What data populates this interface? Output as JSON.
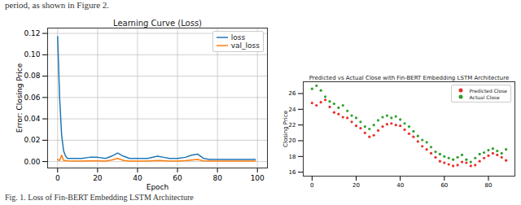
{
  "page_text": "period, as shown in Figure 2.",
  "caption": "Fig. 1. Loss of Fin-BERT Embedding LSTM Architecture",
  "chart_data": [
    {
      "type": "line",
      "title": "Learning Curve (Loss)",
      "x_label": "Epoch",
      "y_label": "Error: Closing Price",
      "x": [
        0,
        1,
        2,
        3,
        4,
        5,
        8,
        12,
        16,
        20,
        24,
        27,
        30,
        33,
        36,
        40,
        45,
        50,
        53,
        56,
        60,
        64,
        67,
        70,
        73,
        76,
        80,
        85,
        90,
        95,
        99
      ],
      "series": [
        {
          "name": "loss",
          "color": "#1f77b4",
          "values": [
            0.117,
            0.06,
            0.025,
            0.01,
            0.005,
            0.003,
            0.003,
            0.003,
            0.004,
            0.004,
            0.003,
            0.005,
            0.008,
            0.005,
            0.003,
            0.003,
            0.003,
            0.005,
            0.004,
            0.003,
            0.003,
            0.004,
            0.006,
            0.007,
            0.003,
            0.002,
            0.002,
            0.002,
            0.002,
            0.002,
            0.002
          ]
        },
        {
          "name": "val_loss",
          "color": "#ff7f0e",
          "values": [
            0.002,
            0.001,
            0.006,
            0.001,
            0.0008,
            0.0006,
            0.0005,
            0.0005,
            0.0006,
            0.0006,
            0.0005,
            0.0015,
            0.003,
            0.001,
            0.0005,
            0.0005,
            0.0005,
            0.001,
            0.0008,
            0.0005,
            0.0005,
            0.0008,
            0.0015,
            0.002,
            0.0006,
            0.0005,
            0.0005,
            0.0005,
            0.0005,
            0.0005,
            0.0005
          ]
        }
      ],
      "xlim": [
        -5,
        105
      ],
      "xticks": [
        0,
        20,
        40,
        60,
        80,
        100
      ],
      "ylim": [
        -0.006,
        0.125
      ],
      "yticks": [
        {
          "value": 0,
          "label": "0.00"
        },
        {
          "value": 0.02,
          "label": "0.02"
        },
        {
          "value": 0.04,
          "label": "0.04"
        },
        {
          "value": 0.06,
          "label": "0.06"
        },
        {
          "value": 0.08,
          "label": "0.08"
        },
        {
          "value": 0.1,
          "label": "0.10"
        },
        {
          "value": 0.12,
          "label": "0.12"
        }
      ],
      "grid": true,
      "legend": "upper right"
    },
    {
      "type": "scatter",
      "title": "Predicted vs Actual Close with Fin-BERT Embedding LSTM Architecture",
      "y_label": "Closing Price",
      "x": [
        0,
        2,
        4,
        6,
        8,
        10,
        12,
        14,
        16,
        18,
        20,
        22,
        24,
        26,
        28,
        30,
        32,
        34,
        36,
        38,
        40,
        42,
        44,
        46,
        48,
        50,
        52,
        54,
        56,
        58,
        60,
        62,
        64,
        66,
        68,
        70,
        72,
        74,
        76,
        78,
        80,
        82,
        84,
        86,
        88
      ],
      "series": [
        {
          "name": "Predicted Close",
          "color": "#e8302a",
          "marker": "o",
          "values": [
            24.8,
            24.5,
            24.9,
            25.2,
            24.3,
            23.6,
            23.4,
            23.0,
            22.9,
            22.4,
            21.9,
            21.6,
            21.0,
            20.5,
            20.7,
            21.3,
            21.8,
            22.1,
            22.2,
            22.0,
            21.9,
            21.4,
            20.9,
            20.5,
            19.9,
            19.3,
            18.9,
            18.4,
            17.9,
            17.4,
            17.2,
            17.0,
            16.8,
            16.9,
            17.3,
            17.2,
            16.8,
            16.9,
            17.4,
            17.8,
            18.1,
            18.4,
            18.2,
            17.9,
            17.5
          ]
        },
        {
          "name": "Actual Close",
          "color": "#2ca02c",
          "marker": "o",
          "values": [
            26.6,
            27.0,
            26.4,
            25.6,
            25.0,
            24.7,
            24.2,
            24.5,
            23.8,
            23.2,
            22.9,
            22.4,
            21.8,
            21.5,
            22.0,
            22.6,
            23.0,
            23.2,
            22.9,
            23.1,
            22.7,
            22.2,
            21.8,
            21.2,
            20.6,
            20.1,
            19.8,
            19.2,
            18.6,
            18.3,
            18.0,
            17.8,
            17.6,
            17.9,
            18.2,
            17.6,
            17.3,
            17.8,
            18.3,
            18.5,
            18.8,
            19.0,
            18.7,
            18.4,
            18.9
          ]
        }
      ],
      "xlim": [
        -4,
        92
      ],
      "xticks": [
        0,
        20,
        40,
        60,
        80
      ],
      "ylim": [
        15.5,
        27.5
      ],
      "yticks": [
        16,
        18,
        20,
        22,
        24,
        26
      ],
      "grid": false,
      "legend": "upper right"
    }
  ]
}
